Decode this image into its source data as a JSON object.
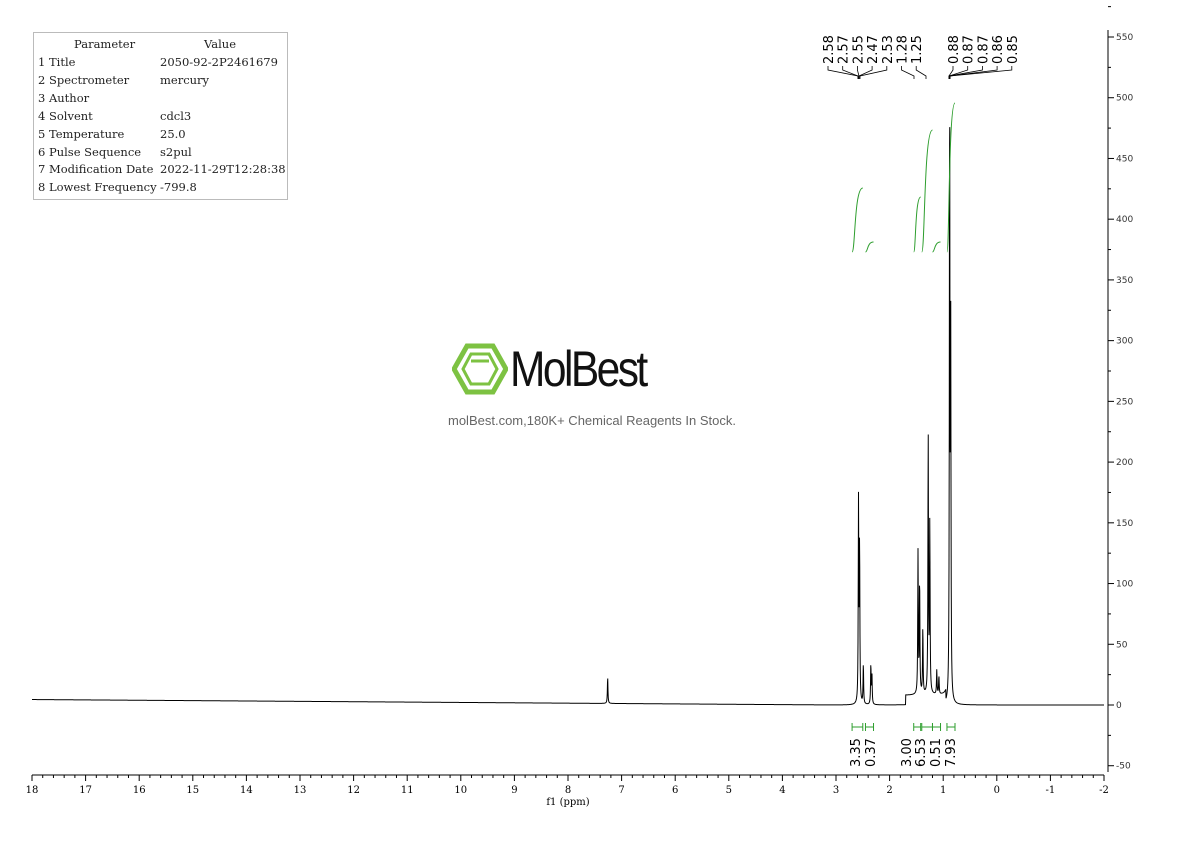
{
  "parameters": {
    "header": [
      "Parameter",
      "Value"
    ],
    "rows": [
      [
        "1 Title",
        "2050-92-2P2461679"
      ],
      [
        "2 Spectrometer",
        "mercury"
      ],
      [
        "3 Author",
        ""
      ],
      [
        "4 Solvent",
        "cdcl3"
      ],
      [
        "5 Temperature",
        "25.0"
      ],
      [
        "6 Pulse Sequence",
        "s2pul"
      ],
      [
        "7 Modification Date",
        "2022-11-29T12:28:38"
      ],
      [
        "8 Lowest Frequency",
        "-799.8"
      ]
    ]
  },
  "watermark": {
    "brand": "MolBest",
    "tagline": "molBest.com,180K+ Chemical Reagents In Stock.",
    "color": "#7dc242"
  },
  "chart_data": {
    "type": "line",
    "xlabel": "f1 (ppm)",
    "xlim": [
      18,
      -2
    ],
    "ylim": [
      -50,
      550
    ],
    "xticks": [
      18,
      17,
      16,
      15,
      14,
      13,
      12,
      11,
      10,
      9,
      8,
      7,
      6,
      5,
      4,
      3,
      2,
      1,
      0,
      -1,
      -2
    ],
    "yticks": [
      550,
      500,
      450,
      400,
      350,
      300,
      250,
      200,
      150,
      100,
      50,
      0,
      -50
    ],
    "peaks": [
      {
        "ppm": 7.26,
        "height": 22
      },
      {
        "ppm": 2.58,
        "height": 165
      },
      {
        "ppm": 2.56,
        "height": 130
      },
      {
        "ppm": 2.49,
        "height": 33
      },
      {
        "ppm": 2.35,
        "height": 33
      },
      {
        "ppm": 2.33,
        "height": 25
      },
      {
        "ppm": 1.47,
        "height": 117
      },
      {
        "ppm": 1.44,
        "height": 95
      },
      {
        "ppm": 1.38,
        "height": 55
      },
      {
        "ppm": 1.28,
        "height": 215
      },
      {
        "ppm": 1.25,
        "height": 140
      },
      {
        "ppm": 1.12,
        "height": 20
      },
      {
        "ppm": 1.08,
        "height": 15
      },
      {
        "ppm": 0.88,
        "height": 505
      },
      {
        "ppm": 0.86,
        "height": 300
      }
    ],
    "peak_labels": {
      "group1": [
        "2.58",
        "2.57",
        "2.55",
        "2.47",
        "2.53",
        "1.28",
        "1.25"
      ],
      "group2": [
        "0.88",
        "0.87",
        "0.87",
        "0.86",
        "0.85"
      ]
    },
    "integrals": [
      {
        "from": 2.7,
        "to": 2.5,
        "value": "3.35"
      },
      {
        "from": 2.45,
        "to": 2.3,
        "value": "0.37"
      },
      {
        "from": 1.55,
        "to": 1.42,
        "value": "3.00"
      },
      {
        "from": 1.4,
        "to": 1.2,
        "value": "6.53"
      },
      {
        "from": 1.2,
        "to": 1.05,
        "value": "0.51"
      },
      {
        "from": 0.93,
        "to": 0.78,
        "value": "7.93"
      }
    ],
    "colors": {
      "spectrum": "#000000",
      "integral": "#2e9e2e"
    }
  }
}
